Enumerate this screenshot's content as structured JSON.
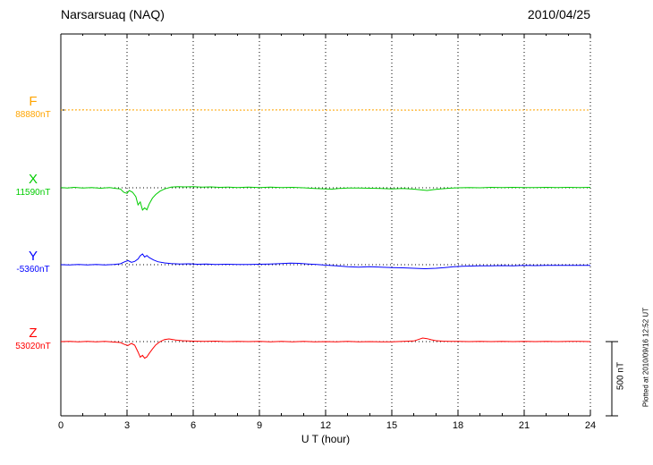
{
  "chart_data": {
    "type": "line",
    "title": "Narsarsuaq (NAQ)",
    "date": "2010/04/25",
    "xlabel": "U T (hour)",
    "x_range": [
      0,
      24
    ],
    "x_ticks": [
      0,
      3,
      6,
      9,
      12,
      15,
      18,
      21,
      24
    ],
    "grid": "dotted-vertical-every-3h",
    "scale_bar": {
      "label": "500 nT",
      "value_nT": 500
    },
    "plotted_note": "Plotted at 2010/09/16 12:52 UT",
    "series": [
      {
        "name": "F",
        "baseline_label": "88880nT",
        "color": "#FFA500",
        "style": "dashed",
        "points": [
          [
            0,
            0
          ],
          [
            1,
            1
          ],
          [
            2,
            -1
          ],
          [
            3,
            1
          ],
          [
            4,
            -1
          ],
          [
            5,
            0
          ],
          [
            6,
            1
          ],
          [
            7,
            0
          ],
          [
            8,
            -1
          ],
          [
            9,
            0
          ],
          [
            10,
            1
          ],
          [
            11,
            0
          ],
          [
            12,
            -1
          ],
          [
            13,
            0
          ],
          [
            14,
            1
          ],
          [
            15,
            0
          ],
          [
            16,
            -1
          ],
          [
            17,
            0
          ],
          [
            18,
            1
          ],
          [
            19,
            0
          ],
          [
            20,
            -1
          ],
          [
            21,
            0
          ],
          [
            22,
            1
          ],
          [
            23,
            0
          ],
          [
            24,
            0
          ]
        ]
      },
      {
        "name": "X",
        "baseline_label": "11590nT",
        "color": "#00CC00",
        "style": "solid",
        "points": [
          [
            0,
            2
          ],
          [
            0.3,
            -2
          ],
          [
            0.6,
            3
          ],
          [
            1,
            -1
          ],
          [
            1.4,
            2
          ],
          [
            1.8,
            -3
          ],
          [
            2.2,
            1
          ],
          [
            2.5,
            -4
          ],
          [
            2.7,
            -8
          ],
          [
            2.85,
            -30
          ],
          [
            3,
            -38
          ],
          [
            3.1,
            -18
          ],
          [
            3.25,
            -30
          ],
          [
            3.4,
            -60
          ],
          [
            3.5,
            -115
          ],
          [
            3.6,
            -95
          ],
          [
            3.7,
            -150
          ],
          [
            3.8,
            -135
          ],
          [
            3.9,
            -148
          ],
          [
            4,
            -110
          ],
          [
            4.15,
            -70
          ],
          [
            4.3,
            -45
          ],
          [
            4.5,
            -22
          ],
          [
            4.7,
            -8
          ],
          [
            5,
            4
          ],
          [
            5.3,
            8
          ],
          [
            5.6,
            6
          ],
          [
            6,
            8
          ],
          [
            6.4,
            4
          ],
          [
            6.8,
            6
          ],
          [
            7.2,
            3
          ],
          [
            7.6,
            5
          ],
          [
            8,
            2
          ],
          [
            8.5,
            4
          ],
          [
            9,
            2
          ],
          [
            9.5,
            4
          ],
          [
            10,
            1
          ],
          [
            10.5,
            3
          ],
          [
            11,
            0
          ],
          [
            11.5,
            -4
          ],
          [
            12,
            -7
          ],
          [
            12.3,
            -9
          ],
          [
            12.6,
            -5
          ],
          [
            13,
            -2
          ],
          [
            13.5,
            -1
          ],
          [
            14,
            -3
          ],
          [
            14.5,
            -5
          ],
          [
            15,
            -7
          ],
          [
            15.5,
            -5
          ],
          [
            16,
            -9
          ],
          [
            16.3,
            -14
          ],
          [
            16.6,
            -18
          ],
          [
            16.9,
            -12
          ],
          [
            17.2,
            -7
          ],
          [
            17.6,
            -3
          ],
          [
            18,
            0
          ],
          [
            18.5,
            2
          ],
          [
            19,
            0
          ],
          [
            19.5,
            3
          ],
          [
            20,
            1
          ],
          [
            20.5,
            3
          ],
          [
            21,
            1
          ],
          [
            21.5,
            2
          ],
          [
            22,
            3
          ],
          [
            22.5,
            1
          ],
          [
            23,
            3
          ],
          [
            23.5,
            2
          ],
          [
            24,
            3
          ]
        ]
      },
      {
        "name": "Y",
        "baseline_label": "-5360nT",
        "color": "#0000FF",
        "style": "solid",
        "points": [
          [
            0,
            0
          ],
          [
            0.4,
            -2
          ],
          [
            0.8,
            1
          ],
          [
            1.2,
            -1
          ],
          [
            1.6,
            1
          ],
          [
            2,
            -1
          ],
          [
            2.4,
            2
          ],
          [
            2.7,
            6
          ],
          [
            2.9,
            20
          ],
          [
            3.05,
            28
          ],
          [
            3.2,
            16
          ],
          [
            3.35,
            22
          ],
          [
            3.5,
            38
          ],
          [
            3.6,
            60
          ],
          [
            3.7,
            72
          ],
          [
            3.8,
            52
          ],
          [
            3.9,
            62
          ],
          [
            4,
            48
          ],
          [
            4.2,
            32
          ],
          [
            4.4,
            20
          ],
          [
            4.7,
            12
          ],
          [
            5,
            8
          ],
          [
            5.4,
            5
          ],
          [
            5.8,
            6
          ],
          [
            6.2,
            3
          ],
          [
            6.6,
            4
          ],
          [
            7,
            2
          ],
          [
            7.5,
            3
          ],
          [
            8,
            2
          ],
          [
            8.5,
            1
          ],
          [
            9,
            3
          ],
          [
            9.5,
            5
          ],
          [
            10,
            8
          ],
          [
            10.4,
            11
          ],
          [
            10.8,
            9
          ],
          [
            11.2,
            5
          ],
          [
            11.6,
            1
          ],
          [
            12,
            -3
          ],
          [
            12.5,
            -8
          ],
          [
            13,
            -13
          ],
          [
            13.5,
            -16
          ],
          [
            14,
            -14
          ],
          [
            14.5,
            -17
          ],
          [
            15,
            -19
          ],
          [
            15.5,
            -21
          ],
          [
            16,
            -24
          ],
          [
            16.5,
            -27
          ],
          [
            17,
            -24
          ],
          [
            17.4,
            -19
          ],
          [
            17.8,
            -14
          ],
          [
            18.2,
            -11
          ],
          [
            18.6,
            -9
          ],
          [
            19,
            -8
          ],
          [
            19.5,
            -7
          ],
          [
            20,
            -6
          ],
          [
            20.5,
            -7
          ],
          [
            21,
            -5
          ],
          [
            21.5,
            -6
          ],
          [
            22,
            -4
          ],
          [
            22.5,
            -5
          ],
          [
            23,
            -4
          ],
          [
            23.5,
            -4
          ],
          [
            24,
            -5
          ]
        ]
      },
      {
        "name": "Z",
        "baseline_label": "53020nT",
        "color": "#FF0000",
        "style": "solid",
        "points": [
          [
            0,
            0
          ],
          [
            0.4,
            2
          ],
          [
            0.8,
            -2
          ],
          [
            1.2,
            1
          ],
          [
            1.6,
            -1
          ],
          [
            2,
            1
          ],
          [
            2.4,
            -3
          ],
          [
            2.7,
            -6
          ],
          [
            2.9,
            -20
          ],
          [
            3.05,
            -26
          ],
          [
            3.2,
            -12
          ],
          [
            3.35,
            -24
          ],
          [
            3.5,
            -70
          ],
          [
            3.6,
            -105
          ],
          [
            3.7,
            -92
          ],
          [
            3.8,
            -112
          ],
          [
            3.9,
            -103
          ],
          [
            4,
            -80
          ],
          [
            4.15,
            -50
          ],
          [
            4.3,
            -22
          ],
          [
            4.5,
            0
          ],
          [
            4.7,
            14
          ],
          [
            4.9,
            18
          ],
          [
            5.2,
            10
          ],
          [
            5.5,
            6
          ],
          [
            6,
            3
          ],
          [
            6.5,
            1
          ],
          [
            7,
            3
          ],
          [
            7.5,
            0
          ],
          [
            8,
            2
          ],
          [
            8.5,
            0
          ],
          [
            9,
            2
          ],
          [
            9.5,
            -1
          ],
          [
            10,
            1
          ],
          [
            10.5,
            -1
          ],
          [
            11,
            1
          ],
          [
            11.5,
            -2
          ],
          [
            12,
            0
          ],
          [
            12.5,
            -1
          ],
          [
            13,
            1
          ],
          [
            13.5,
            -1
          ],
          [
            14,
            0
          ],
          [
            14.5,
            -2
          ],
          [
            15,
            -1
          ],
          [
            15.5,
            1
          ],
          [
            16,
            4
          ],
          [
            16.2,
            14
          ],
          [
            16.4,
            24
          ],
          [
            16.6,
            20
          ],
          [
            16.8,
            12
          ],
          [
            17,
            6
          ],
          [
            17.3,
            3
          ],
          [
            17.6,
            1
          ],
          [
            18,
            2
          ],
          [
            18.5,
            0
          ],
          [
            19,
            2
          ],
          [
            19.5,
            0
          ],
          [
            20,
            2
          ],
          [
            20.5,
            0
          ],
          [
            21,
            1
          ],
          [
            21.5,
            0
          ],
          [
            22,
            2
          ],
          [
            22.5,
            0
          ],
          [
            23,
            1
          ],
          [
            23.5,
            1
          ],
          [
            24,
            0
          ]
        ]
      }
    ]
  }
}
